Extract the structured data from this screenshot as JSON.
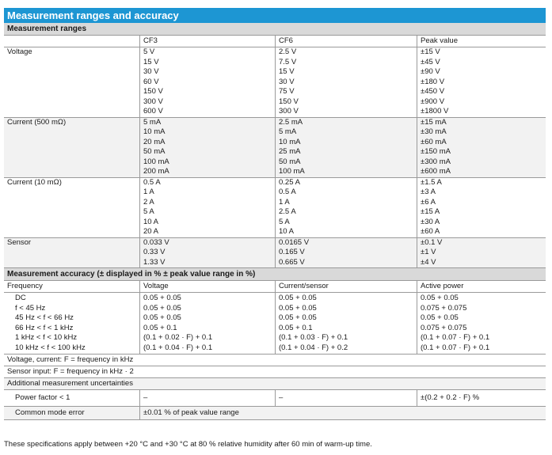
{
  "title": "Measurement ranges and accuracy",
  "ranges": {
    "heading": "Measurement ranges",
    "columns": [
      "",
      "CF3",
      "CF6",
      "Peak value"
    ],
    "groups": [
      {
        "label": "Voltage",
        "cf3": [
          "5 V",
          "15 V",
          "30 V",
          "60 V",
          "150 V",
          "300 V",
          "600 V"
        ],
        "cf6": [
          "2.5 V",
          "7.5 V",
          "15 V",
          "30 V",
          "75 V",
          "150 V",
          "300 V"
        ],
        "peak": [
          "±15 V",
          "±45 V",
          "±90 V",
          "±180 V",
          "±450 V",
          "±900 V",
          "±1800 V"
        ]
      },
      {
        "label": "Current (500 mΩ)",
        "cf3": [
          "5 mA",
          "10 mA",
          "20 mA",
          "50 mA",
          "100 mA",
          "200 mA"
        ],
        "cf6": [
          "2.5 mA",
          "5 mA",
          "10 mA",
          "25 mA",
          "50 mA",
          "100 mA"
        ],
        "peak": [
          "±15 mA",
          "±30 mA",
          "±60 mA",
          "±150 mA",
          "±300 mA",
          "±600 mA"
        ]
      },
      {
        "label": "Current (10 mΩ)",
        "cf3": [
          "0.5 A",
          "1 A",
          "2 A",
          "5 A",
          "10 A",
          "20 A"
        ],
        "cf6": [
          "0.25 A",
          "0.5 A",
          "1 A",
          "2.5 A",
          "5 A",
          "10 A"
        ],
        "peak": [
          "±1.5 A",
          "±3 A",
          "±6 A",
          "±15 A",
          "±30 A",
          "±60 A"
        ]
      },
      {
        "label": "Sensor",
        "cf3": [
          "0.033 V",
          "0.33 V",
          "1.33 V"
        ],
        "cf6": [
          "0.0165 V",
          "0.165 V",
          "0.665 V"
        ],
        "peak": [
          "±0.1 V",
          "±1 V",
          "±4 V"
        ]
      }
    ]
  },
  "accuracy": {
    "heading": "Measurement accuracy (± displayed in % ± peak value range in %)",
    "columns": [
      "Frequency",
      "Voltage",
      "Current/sensor",
      "Active power"
    ],
    "rows": [
      {
        "freq": "DC",
        "voltage": "0.05 + 0.05",
        "current": "0.05 + 0.05",
        "power": "0.05 + 0.05"
      },
      {
        "freq": "f < 45 Hz",
        "voltage": "0.05 + 0.05",
        "current": "0.05 + 0.05",
        "power": "0.075 + 0.075"
      },
      {
        "freq": "45 Hz < f < 66 Hz",
        "voltage": "0.05 + 0.05",
        "current": "0.05 + 0.05",
        "power": "0.05 + 0.05"
      },
      {
        "freq": "66 Hz < f < 1 kHz",
        "voltage": "0.05 + 0.1",
        "current": "0.05 + 0.1",
        "power": "0.075 + 0.075"
      },
      {
        "freq": "1 kHz < f < 10 kHz",
        "voltage": "(0.1 + 0.02 · F) + 0.1",
        "current": "(0.1 + 0.03 · F) + 0.1",
        "power": "(0.1 + 0.07 · F) + 0.1"
      },
      {
        "freq": "10 kHz < f < 100 kHz",
        "voltage": "(0.1 + 0.04 · F) + 0.1",
        "current": "(0.1 + 0.04 · F) + 0.2",
        "power": "(0.1 + 0.07 · F) + 0.1"
      }
    ],
    "note1": "Voltage, current: F = frequency in kHz",
    "note2": "Sensor input: F = frequency in kHz · 2",
    "additional": "Additional measurement uncertainties",
    "pf": {
      "label": "Power factor < 1",
      "c1": "–",
      "c2": "–",
      "c3": "±(0.2 + 0.2 · F) %"
    },
    "cm": {
      "label": "Common mode error",
      "c1": "±0.01 % of peak value range"
    }
  },
  "footer": "These specifications apply between +20 °C and +30 °C at 80 % relative humidity after 60 min of warm-up time."
}
